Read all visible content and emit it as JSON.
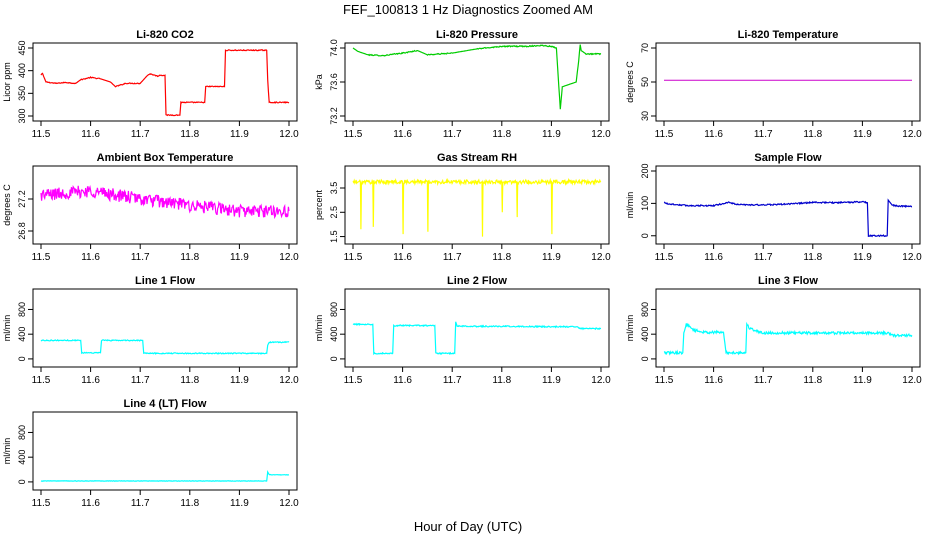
{
  "figure": {
    "title": "FEF_100813  1 Hz Diagnostics Zoomed AM",
    "xlabel": "Hour of Day (UTC)"
  },
  "chart_data": [
    {
      "type": "line",
      "title": "Li-820 CO2",
      "ylabel": "Licor ppm",
      "color": "#ff0000",
      "xlim": [
        11.5,
        12.0
      ],
      "ylim": [
        300,
        450
      ],
      "xticks": [
        "11.5",
        "11.6",
        "11.7",
        "11.8",
        "11.9",
        "12.0"
      ],
      "yticks": [
        "300",
        "350",
        "400",
        "450"
      ],
      "series": [
        {
          "noise": 1,
          "x": [
            11.5,
            11.503,
            11.51,
            11.53,
            11.55,
            11.57,
            11.58,
            11.6,
            11.62,
            11.64,
            11.65,
            11.66,
            11.67,
            11.7,
            11.715,
            11.72,
            11.735,
            11.74,
            11.75,
            11.752,
            11.77,
            11.78,
            11.782,
            11.8,
            11.83,
            11.832,
            11.85,
            11.87,
            11.872,
            11.9,
            11.955,
            11.957,
            11.96,
            11.99,
            12.0
          ],
          "y": [
            390,
            394,
            375,
            372,
            374,
            372,
            380,
            385,
            382,
            375,
            365,
            368,
            372,
            372,
            390,
            393,
            388,
            390,
            390,
            302,
            302,
            302,
            330,
            330,
            330,
            365,
            365,
            365,
            445,
            445,
            445,
            380,
            330,
            330,
            330
          ]
        }
      ]
    },
    {
      "type": "line",
      "title": "Li-820 Pressure",
      "ylabel": "kPa",
      "color": "#00cc00",
      "xlim": [
        11.5,
        12.0
      ],
      "ylim": [
        73.2,
        74.0
      ],
      "xticks": [
        "11.5",
        "11.6",
        "11.7",
        "11.8",
        "11.9",
        "12.0"
      ],
      "yticks": [
        "73.2",
        "73.6",
        "74.0"
      ],
      "series": [
        {
          "noise": 0.006,
          "x": [
            11.5,
            11.51,
            11.53,
            11.56,
            11.6,
            11.63,
            11.65,
            11.7,
            11.75,
            11.8,
            11.85,
            11.88,
            11.9,
            11.91,
            11.915,
            11.918,
            11.922,
            11.925,
            11.95,
            11.955,
            11.958,
            11.96,
            11.97,
            12.0
          ],
          "y": [
            74.0,
            73.96,
            73.92,
            73.91,
            73.94,
            73.97,
            73.92,
            73.94,
            73.99,
            74.02,
            74.02,
            74.03,
            74.02,
            74.0,
            73.55,
            73.28,
            73.55,
            73.55,
            73.6,
            73.85,
            74.04,
            73.97,
            73.93,
            73.93
          ]
        }
      ]
    },
    {
      "type": "line",
      "title": "Li-820 Temperature",
      "ylabel": "degrees C",
      "color": "#cc00cc",
      "xlim": [
        11.5,
        12.0
      ],
      "ylim": [
        30,
        70
      ],
      "xticks": [
        "11.5",
        "11.6",
        "11.7",
        "11.8",
        "11.9",
        "12.0"
      ],
      "yticks": [
        "30",
        "50",
        "70"
      ],
      "series": [
        {
          "noise": 0,
          "x": [
            11.5,
            12.0
          ],
          "y": [
            51,
            51
          ]
        }
      ]
    },
    {
      "type": "line",
      "title": "Ambient Box Temperature",
      "ylabel": "degrees C",
      "color": "#ff00ff",
      "xlim": [
        11.5,
        12.0
      ],
      "ylim": [
        26.7,
        27.55
      ],
      "xticks": [
        "11.5",
        "11.6",
        "11.7",
        "11.8",
        "11.9",
        "12.0"
      ],
      "yticks": [
        "26.8",
        "27.2"
      ],
      "series": [
        {
          "noise": 0.08,
          "x": [
            11.5,
            11.6,
            11.7,
            11.8,
            11.9,
            12.0
          ],
          "y": [
            27.25,
            27.3,
            27.2,
            27.12,
            27.05,
            27.05
          ]
        }
      ]
    },
    {
      "type": "line",
      "title": "Gas Stream RH",
      "ylabel": "percent",
      "color": "#ffff00",
      "xlim": [
        11.5,
        12.0
      ],
      "ylim": [
        1.4,
        4.2
      ],
      "xticks": [
        "11.5",
        "11.6",
        "11.7",
        "11.8",
        "11.9",
        "12.0"
      ],
      "yticks": [
        "1.5",
        "2.5",
        "3.5"
      ],
      "series": [
        {
          "noise": 0.08,
          "x": [
            11.5,
            11.515,
            11.516,
            11.517,
            11.54,
            11.541,
            11.542,
            11.6,
            11.601,
            11.602,
            11.65,
            11.651,
            11.652,
            11.76,
            11.761,
            11.762,
            11.8,
            11.801,
            11.802,
            11.83,
            11.831,
            11.832,
            11.9,
            11.901,
            11.902,
            12.0
          ],
          "y": [
            3.75,
            3.75,
            1.8,
            3.75,
            3.75,
            1.9,
            3.75,
            3.75,
            1.6,
            3.75,
            3.75,
            1.7,
            3.75,
            3.75,
            1.5,
            3.75,
            3.75,
            2.5,
            3.75,
            3.75,
            2.3,
            3.75,
            3.75,
            1.6,
            3.75,
            3.75
          ]
        }
      ]
    },
    {
      "type": "line",
      "title": "Sample Flow",
      "ylabel": "ml/min",
      "color": "#0000cc",
      "xlim": [
        11.5,
        12.0
      ],
      "ylim": [
        -10,
        200
      ],
      "xticks": [
        "11.5",
        "11.6",
        "11.7",
        "11.8",
        "11.9",
        "12.0"
      ],
      "yticks": [
        "0",
        "100",
        "200"
      ],
      "series": [
        {
          "noise": 2,
          "x": [
            11.5,
            11.51,
            11.55,
            11.6,
            11.63,
            11.65,
            11.7,
            11.75,
            11.8,
            11.85,
            11.9,
            11.91,
            11.912,
            11.95,
            11.952,
            11.96,
            11.97,
            12.0
          ],
          "y": [
            103,
            98,
            93,
            93,
            103,
            96,
            95,
            98,
            103,
            102,
            105,
            102,
            0,
            0,
            110,
            95,
            92,
            90
          ]
        }
      ]
    },
    {
      "type": "line",
      "title": "Line 1 Flow",
      "ylabel": "ml/min",
      "color": "#00ffff",
      "xlim": [
        11.5,
        12.0
      ],
      "ylim": [
        -50,
        1050
      ],
      "xticks": [
        "11.5",
        "11.6",
        "11.7",
        "11.8",
        "11.9",
        "12.0"
      ],
      "yticks": [
        "0",
        "400",
        "800"
      ],
      "series": [
        {
          "noise": 8,
          "x": [
            11.5,
            11.58,
            11.582,
            11.62,
            11.622,
            11.705,
            11.707,
            11.955,
            11.957,
            11.96,
            12.0
          ],
          "y": [
            300,
            300,
            100,
            100,
            300,
            300,
            90,
            90,
            220,
            270,
            270
          ]
        }
      ]
    },
    {
      "type": "line",
      "title": "Line 2 Flow",
      "ylabel": "ml/min",
      "color": "#00ffff",
      "xlim": [
        11.5,
        12.0
      ],
      "ylim": [
        -50,
        1050
      ],
      "xticks": [
        "11.5",
        "11.6",
        "11.7",
        "11.8",
        "11.9",
        "12.0"
      ],
      "yticks": [
        "0",
        "400",
        "800"
      ],
      "series": [
        {
          "noise": 10,
          "x": [
            11.5,
            11.54,
            11.542,
            11.58,
            11.582,
            11.665,
            11.667,
            11.705,
            11.707,
            11.71,
            11.95,
            11.96,
            12.0
          ],
          "y": [
            560,
            560,
            90,
            90,
            540,
            540,
            90,
            90,
            600,
            530,
            520,
            490,
            490
          ]
        }
      ]
    },
    {
      "type": "line",
      "title": "Line 3 Flow",
      "ylabel": "ml/min",
      "color": "#00ffff",
      "xlim": [
        11.5,
        12.0
      ],
      "ylim": [
        -50,
        1050
      ],
      "xticks": [
        "11.5",
        "11.6",
        "11.7",
        "11.8",
        "11.9",
        "12.0"
      ],
      "yticks": [
        "0",
        "400",
        "800"
      ],
      "series": [
        {
          "noise": 20,
          "x": [
            11.5,
            11.538,
            11.54,
            11.545,
            11.56,
            11.58,
            11.62,
            11.625,
            11.66,
            11.665,
            11.667,
            11.672,
            11.69,
            11.7,
            11.95,
            11.96,
            12.0
          ],
          "y": [
            100,
            100,
            420,
            560,
            470,
            430,
            430,
            100,
            100,
            100,
            560,
            500,
            440,
            420,
            420,
            380,
            380
          ]
        }
      ]
    },
    {
      "type": "line",
      "title": "Line 4 (LT) Flow",
      "ylabel": "ml/min",
      "color": "#00ffff",
      "xlim": [
        11.5,
        12.0
      ],
      "ylim": [
        -50,
        1050
      ],
      "xticks": [
        "11.5",
        "11.6",
        "11.7",
        "11.8",
        "11.9",
        "12.0"
      ],
      "yticks": [
        "0",
        "400",
        "800"
      ],
      "series": [
        {
          "noise": 3,
          "x": [
            11.5,
            11.955,
            11.957,
            11.96,
            11.965,
            12.0
          ],
          "y": [
            15,
            15,
            160,
            120,
            115,
            115
          ]
        }
      ]
    }
  ]
}
